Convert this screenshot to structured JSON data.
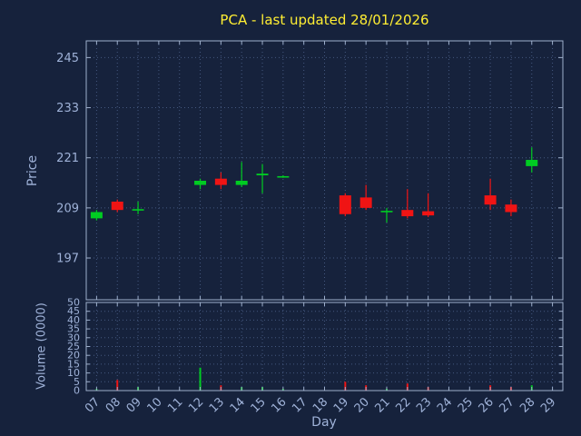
{
  "colors": {
    "background": "#16223c",
    "title": "#ffee33",
    "axis_text": "#9fb2d8",
    "grid": "#44587f",
    "border": "#9fb0cc",
    "up": "#00cc22",
    "down": "#f01414"
  },
  "chart_data": {
    "type": "candlestick",
    "title": "PCA - last updated 28/01/2026",
    "xlabel": "Day",
    "ylabel_price": "Price",
    "ylabel_volume": "Volume (0000)",
    "legend": "none",
    "grid": "dotted",
    "x_range": [
      6.5,
      29.5
    ],
    "price_range": [
      187,
      249
    ],
    "volume_range": [
      0,
      50
    ],
    "x_ticks": [
      "07",
      "08",
      "09",
      "10",
      "11",
      "12",
      "13",
      "14",
      "15",
      "16",
      "17",
      "18",
      "19",
      "20",
      "21",
      "22",
      "23",
      "24",
      "25",
      "26",
      "27",
      "28",
      "29"
    ],
    "price_ticks": [
      197,
      209,
      221,
      233,
      245
    ],
    "volume_ticks": [
      0,
      5,
      10,
      15,
      20,
      25,
      30,
      35,
      40,
      45,
      50
    ],
    "days": [
      {
        "day": 7,
        "label": "07",
        "open": 206.5,
        "high": 208.5,
        "low": 206.0,
        "close": 208.0,
        "volume": 1
      },
      {
        "day": 8,
        "label": "08",
        "open": 210.5,
        "high": 211.0,
        "low": 208.0,
        "close": 208.5,
        "volume": 6
      },
      {
        "day": 9,
        "label": "09",
        "open": 208.5,
        "high": 210.5,
        "low": 207.5,
        "close": 208.7,
        "volume": 2
      },
      {
        "day": 12,
        "label": "12",
        "open": 214.5,
        "high": 216.0,
        "low": 213.5,
        "close": 215.5,
        "volume": 13
      },
      {
        "day": 13,
        "label": "13",
        "open": 216.0,
        "high": 217.5,
        "low": 213.5,
        "close": 214.5,
        "volume": 3
      },
      {
        "day": 14,
        "label": "14",
        "open": 214.5,
        "high": 220.0,
        "low": 214.0,
        "close": 215.5,
        "volume": 2
      },
      {
        "day": 15,
        "label": "15",
        "open": 216.8,
        "high": 219.5,
        "low": 212.5,
        "close": 217.2,
        "volume": 2
      },
      {
        "day": 16,
        "label": "16",
        "open": 216.4,
        "high": 216.8,
        "low": 216.2,
        "close": 216.6,
        "volume": 1
      },
      {
        "day": 19,
        "label": "19",
        "open": 212.0,
        "high": 212.5,
        "low": 207.0,
        "close": 207.5,
        "volume": 5
      },
      {
        "day": 20,
        "label": "20",
        "open": 211.5,
        "high": 214.5,
        "low": 208.5,
        "close": 209.0,
        "volume": 3
      },
      {
        "day": 21,
        "label": "21",
        "open": 208.0,
        "high": 209.0,
        "low": 205.5,
        "close": 208.3,
        "volume": 1
      },
      {
        "day": 22,
        "label": "22",
        "open": 208.5,
        "high": 213.5,
        "low": 206.5,
        "close": 207.0,
        "volume": 4
      },
      {
        "day": 23,
        "label": "23",
        "open": 208.2,
        "high": 212.5,
        "low": 206.8,
        "close": 207.2,
        "volume": 2
      },
      {
        "day": 26,
        "label": "26",
        "open": 212.0,
        "high": 216.0,
        "low": 208.5,
        "close": 209.8,
        "volume": 3
      },
      {
        "day": 27,
        "label": "27",
        "open": 209.8,
        "high": 211.0,
        "low": 207.0,
        "close": 208.0,
        "volume": 2
      },
      {
        "day": 28,
        "label": "28",
        "open": 219.0,
        "high": 223.5,
        "low": 217.5,
        "close": 220.5,
        "volume": 3
      }
    ]
  }
}
